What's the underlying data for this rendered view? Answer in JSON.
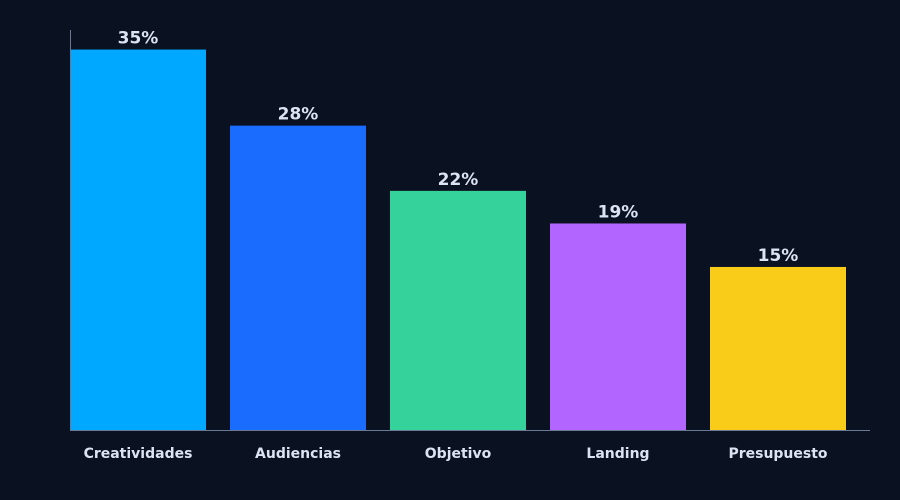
{
  "chart_data": {
    "type": "bar",
    "categories": [
      "Creatividades",
      "Audiencias",
      "Objetivo",
      "Landing",
      "Presupuesto"
    ],
    "values": [
      35,
      28,
      22,
      19,
      15
    ],
    "value_labels": [
      "35%",
      "28%",
      "22%",
      "19%",
      "15%"
    ],
    "unit": "%",
    "ylim": [
      0,
      36.8
    ],
    "title": "",
    "xlabel": "",
    "ylabel": "",
    "grid": false,
    "legend": "none",
    "colors": [
      "#00a8ff",
      "#1a6cff",
      "#35d39b",
      "#b266ff",
      "#facc1a"
    ],
    "background": "#0a1120",
    "axis_color": "#6a7a96",
    "text_color": "#dbe4f3"
  }
}
